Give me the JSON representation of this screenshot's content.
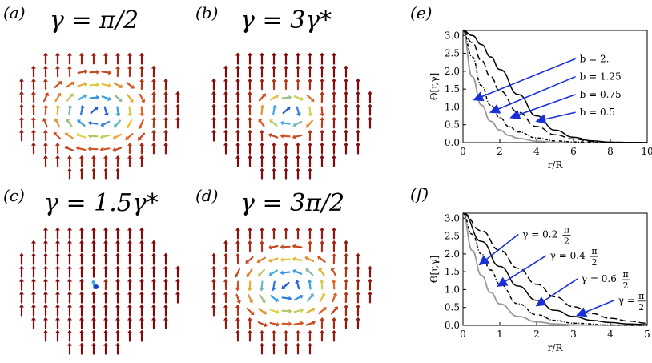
{
  "panels": {
    "a": {
      "label": "(a)",
      "gamma": "γ = π/2"
    },
    "b": {
      "label": "(b)",
      "gamma": "γ = 3γ*"
    },
    "c": {
      "label": "(c)",
      "gamma": "γ = 1.5γ*"
    },
    "d": {
      "label": "(d)",
      "gamma": "γ = 3π/2"
    },
    "e": {
      "label": "(e)"
    },
    "f": {
      "label": "(f)"
    }
  },
  "chart_data": [
    {
      "type": "line",
      "panel": "e",
      "xlabel": "r/R",
      "ylabel": "Θ[r,γ]",
      "xlim": [
        0,
        10
      ],
      "ylim": [
        0,
        3.14159
      ],
      "xticks": [
        "0",
        "2",
        "4",
        "6",
        "8",
        "10"
      ],
      "yticks": [
        "0.0",
        "0.5",
        "1.0",
        "1.5",
        "2.0",
        "2.5",
        "3.0"
      ],
      "series": [
        {
          "name": "b = 2.",
          "style": "gray-solid",
          "x": [
            0,
            0.5,
            1,
            1.5,
            2,
            2.5,
            3,
            4,
            5,
            6,
            8,
            10
          ],
          "y": [
            3.14,
            1.85,
            1.05,
            0.6,
            0.35,
            0.2,
            0.12,
            0.04,
            0.01,
            0,
            0,
            0
          ]
        },
        {
          "name": "b = 1.25",
          "style": "black-dotdash",
          "x": [
            0,
            0.5,
            1,
            1.5,
            2,
            2.5,
            3,
            4,
            5,
            6,
            8,
            10
          ],
          "y": [
            3.14,
            2.4,
            1.6,
            1.05,
            0.7,
            0.45,
            0.3,
            0.13,
            0.05,
            0.02,
            0,
            0
          ]
        },
        {
          "name": "b = 0.75",
          "style": "black-dashed",
          "x": [
            0,
            0.5,
            1,
            1.5,
            2,
            3,
            4,
            5,
            6,
            7,
            8,
            10
          ],
          "y": [
            3.14,
            2.8,
            2.3,
            1.85,
            1.45,
            0.85,
            0.45,
            0.22,
            0.1,
            0.04,
            0.01,
            0
          ]
        },
        {
          "name": "b = 0.5",
          "style": "black-solid",
          "x": [
            0,
            0.5,
            1,
            1.5,
            2,
            3,
            4,
            5,
            6,
            7,
            8,
            10
          ],
          "y": [
            3.14,
            3.0,
            2.75,
            2.4,
            2.05,
            1.35,
            0.75,
            0.35,
            0.15,
            0.05,
            0.01,
            0
          ]
        }
      ],
      "annotations": [
        {
          "text": "b = 2.",
          "x": 6.2,
          "y": 2.35,
          "target": [
            0.6,
            1.2
          ]
        },
        {
          "text": "b = 1.25",
          "x": 6.2,
          "y": 1.85,
          "target": [
            1.5,
            0.85
          ]
        },
        {
          "text": "b = 0.75",
          "x": 6.2,
          "y": 1.35,
          "target": [
            2.6,
            0.7
          ]
        },
        {
          "text": "b = 0.5",
          "x": 6.2,
          "y": 0.85,
          "target": [
            4.0,
            0.6
          ]
        }
      ]
    },
    {
      "type": "line",
      "panel": "f",
      "xlabel": "r/R",
      "ylabel": "Θ[r,γ]",
      "xlim": [
        0,
        5
      ],
      "ylim": [
        0,
        3.14159
      ],
      "xticks": [
        "0",
        "1",
        "2",
        "3",
        "4",
        "5"
      ],
      "yticks": [
        "0.0",
        "0.5",
        "1.0",
        "1.5",
        "2.0",
        "2.5",
        "3.0"
      ],
      "series": [
        {
          "name": "γ = 0.2 π/2",
          "style": "gray-solid",
          "x": [
            0,
            0.25,
            0.5,
            0.75,
            1,
            1.5,
            2,
            2.5,
            3,
            4,
            5
          ],
          "y": [
            3.14,
            2.1,
            1.4,
            0.92,
            0.6,
            0.25,
            0.1,
            0.04,
            0.01,
            0,
            0
          ]
        },
        {
          "name": "γ = 0.4 π/2",
          "style": "black-dotdash",
          "x": [
            0,
            0.25,
            0.5,
            0.75,
            1,
            1.5,
            2,
            2.5,
            3,
            4,
            5
          ],
          "y": [
            3.14,
            2.55,
            2.0,
            1.55,
            1.15,
            0.6,
            0.3,
            0.14,
            0.06,
            0.01,
            0
          ]
        },
        {
          "name": "γ = 0.6 π/2",
          "style": "black-solid",
          "x": [
            0,
            0.5,
            1,
            1.5,
            2,
            2.5,
            3,
            3.5,
            4,
            4.5,
            5
          ],
          "y": [
            3.14,
            2.35,
            1.65,
            1.1,
            0.7,
            0.42,
            0.25,
            0.14,
            0.08,
            0.04,
            0.02
          ]
        },
        {
          "name": "γ = π/2",
          "style": "black-dashed",
          "x": [
            0,
            0.5,
            1,
            1.5,
            2,
            2.5,
            3,
            3.5,
            4,
            4.5,
            5
          ],
          "y": [
            3.14,
            2.65,
            2.1,
            1.6,
            1.15,
            0.8,
            0.52,
            0.33,
            0.2,
            0.12,
            0.06
          ]
        }
      ],
      "annotations": [
        {
          "num": "γ = 0.2",
          "frac_num": "π",
          "frac_den": "2",
          "x": 1.55,
          "y": 2.55,
          "target": [
            0.45,
            1.7
          ]
        },
        {
          "num": "γ = 0.4",
          "frac_num": "π",
          "frac_den": "2",
          "x": 2.3,
          "y": 1.95,
          "target": [
            0.95,
            1.1
          ]
        },
        {
          "num": "γ = 0.6",
          "frac_num": "π",
          "frac_den": "2",
          "x": 3.15,
          "y": 1.3,
          "target": [
            2.0,
            0.55
          ]
        },
        {
          "num": "γ =",
          "frac_num": "π",
          "frac_den": "2",
          "x": 4.15,
          "y": 0.7,
          "target": [
            3.1,
            0.28
          ]
        }
      ]
    }
  ]
}
